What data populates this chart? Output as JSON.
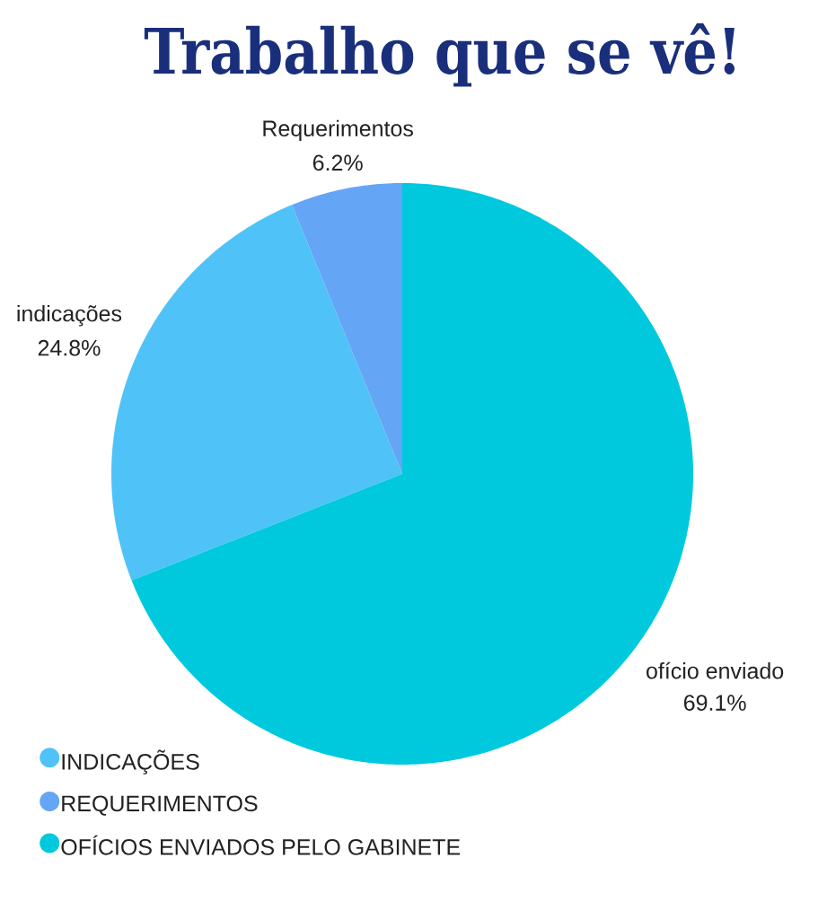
{
  "chart_data": {
    "type": "pie",
    "title": "Trabalho que se vê!",
    "categories": [
      "INDICAÇÕES",
      "REQUERIMENTOS",
      "OFÍCIOS ENVIADOS PELO GABINETE"
    ],
    "values": [
      24.8,
      6.2,
      69.1
    ],
    "colors": [
      "#4fc3f7",
      "#64a5f6",
      "#00c9de"
    ],
    "value_labels": [
      "24.8%",
      "6.2%",
      "69.1%"
    ],
    "annotations": [
      "indicações",
      "Requerimentos",
      "ofício enviado"
    ],
    "legend": "bottom left"
  }
}
